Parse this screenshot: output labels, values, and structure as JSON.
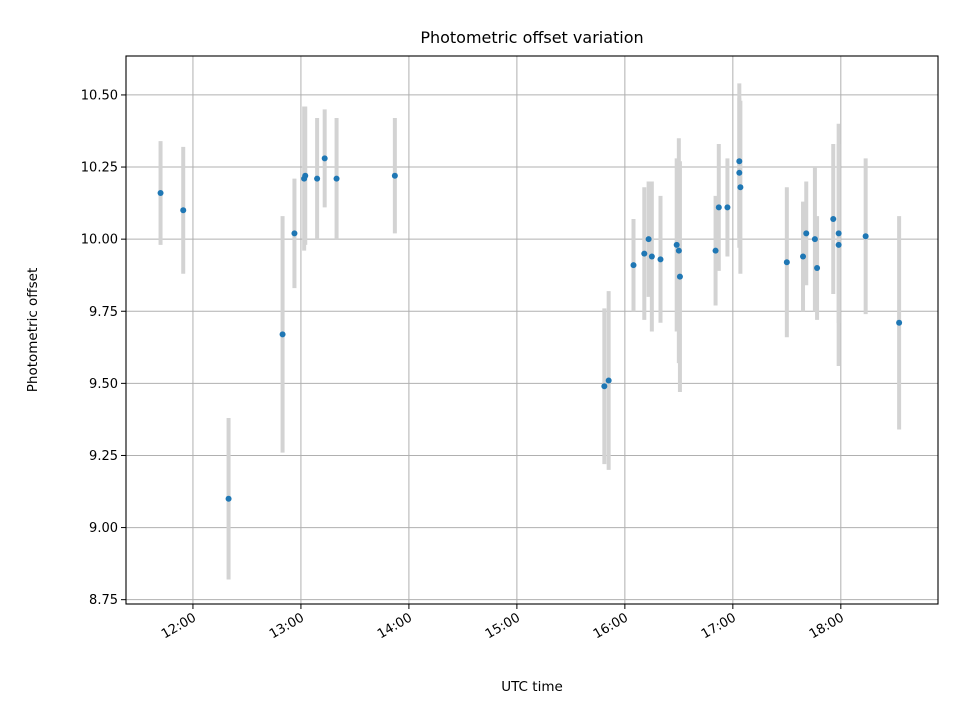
{
  "chart_data": {
    "type": "scatter",
    "title": "Photometric offset variation",
    "xlabel": "UTC time",
    "ylabel": "Photometric offset",
    "x_unit": "hours",
    "xlim": [
      11.38,
      18.9
    ],
    "ylim": [
      8.735,
      10.635
    ],
    "grid": true,
    "error_bars": true,
    "x_ticks": [
      {
        "value": 12,
        "label": "12:00"
      },
      {
        "value": 13,
        "label": "13:00"
      },
      {
        "value": 14,
        "label": "14:00"
      },
      {
        "value": 15,
        "label": "15:00"
      },
      {
        "value": 16,
        "label": "16:00"
      },
      {
        "value": 17,
        "label": "17:00"
      },
      {
        "value": 18,
        "label": "18:00"
      }
    ],
    "y_ticks": [
      {
        "value": 8.75,
        "label": "8.75"
      },
      {
        "value": 9.0,
        "label": "9.00"
      },
      {
        "value": 9.25,
        "label": "9.25"
      },
      {
        "value": 9.5,
        "label": "9.50"
      },
      {
        "value": 9.75,
        "label": "9.75"
      },
      {
        "value": 10.0,
        "label": "10.00"
      },
      {
        "value": 10.25,
        "label": "10.25"
      },
      {
        "value": 10.5,
        "label": "10.50"
      }
    ],
    "colors": {
      "marker": "#1f77b4",
      "errorbar": "#d3d3d3",
      "grid": "#b0b0b0"
    },
    "points": [
      {
        "x": 11.7,
        "y": 10.16,
        "err": 0.18
      },
      {
        "x": 11.91,
        "y": 10.1,
        "err": 0.22
      },
      {
        "x": 12.33,
        "y": 9.1,
        "err": 0.28
      },
      {
        "x": 12.83,
        "y": 9.67,
        "err": 0.41
      },
      {
        "x": 12.94,
        "y": 10.02,
        "err": 0.19
      },
      {
        "x": 13.03,
        "y": 10.21,
        "err": 0.25
      },
      {
        "x": 13.04,
        "y": 10.22,
        "err": 0.24
      },
      {
        "x": 13.15,
        "y": 10.21,
        "err": 0.21
      },
      {
        "x": 13.22,
        "y": 10.28,
        "err": 0.17
      },
      {
        "x": 13.33,
        "y": 10.21,
        "err": 0.21
      },
      {
        "x": 13.87,
        "y": 10.22,
        "err": 0.2
      },
      {
        "x": 15.81,
        "y": 9.49,
        "err": 0.27
      },
      {
        "x": 15.85,
        "y": 9.51,
        "err": 0.31
      },
      {
        "x": 16.08,
        "y": 9.91,
        "err": 0.16
      },
      {
        "x": 16.18,
        "y": 9.95,
        "err": 0.23
      },
      {
        "x": 16.22,
        "y": 10.0,
        "err": 0.2
      },
      {
        "x": 16.25,
        "y": 9.94,
        "err": 0.26
      },
      {
        "x": 16.33,
        "y": 9.93,
        "err": 0.22
      },
      {
        "x": 16.48,
        "y": 9.98,
        "err": 0.3
      },
      {
        "x": 16.5,
        "y": 9.96,
        "err": 0.39
      },
      {
        "x": 16.51,
        "y": 9.87,
        "err": 0.4
      },
      {
        "x": 16.84,
        "y": 9.96,
        "err": 0.19
      },
      {
        "x": 16.87,
        "y": 10.11,
        "err": 0.22
      },
      {
        "x": 16.95,
        "y": 10.11,
        "err": 0.17
      },
      {
        "x": 17.06,
        "y": 10.27,
        "err": 0.27
      },
      {
        "x": 17.06,
        "y": 10.23,
        "err": 0.26
      },
      {
        "x": 17.07,
        "y": 10.18,
        "err": 0.3
      },
      {
        "x": 17.5,
        "y": 9.92,
        "err": 0.26
      },
      {
        "x": 17.65,
        "y": 9.94,
        "err": 0.19
      },
      {
        "x": 17.68,
        "y": 10.02,
        "err": 0.18
      },
      {
        "x": 17.76,
        "y": 10.0,
        "err": 0.25
      },
      {
        "x": 17.78,
        "y": 9.9,
        "err": 0.18
      },
      {
        "x": 17.93,
        "y": 10.07,
        "err": 0.26
      },
      {
        "x": 17.98,
        "y": 10.02,
        "err": 0.31
      },
      {
        "x": 17.98,
        "y": 9.98,
        "err": 0.42
      },
      {
        "x": 18.23,
        "y": 10.01,
        "err": 0.27
      },
      {
        "x": 18.54,
        "y": 9.71,
        "err": 0.37
      }
    ]
  }
}
